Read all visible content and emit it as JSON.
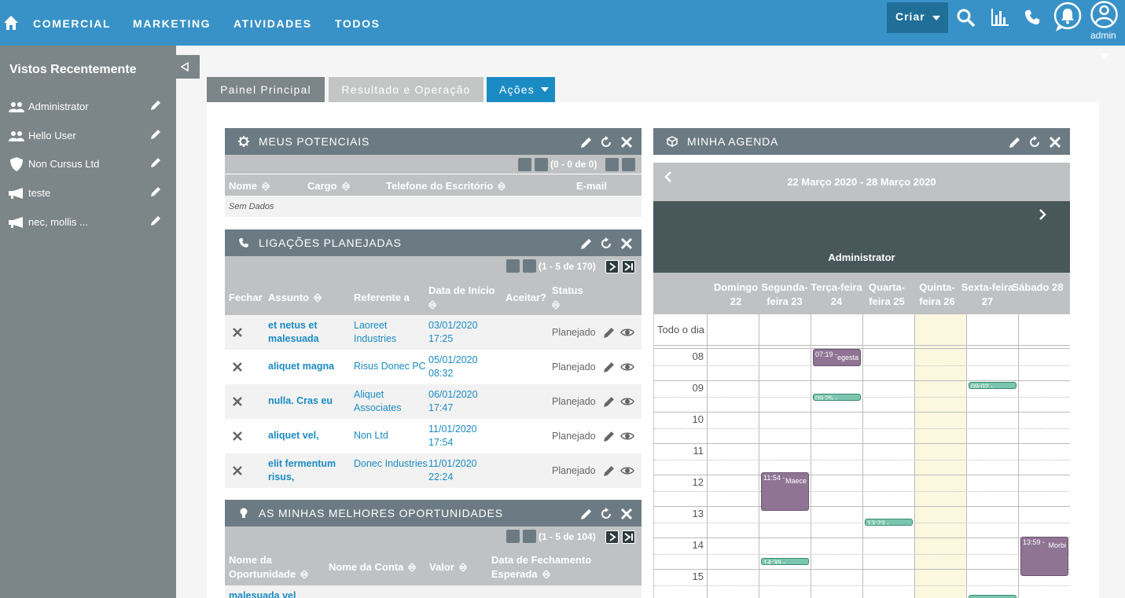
{
  "nav": {
    "items": [
      "COMERCIAL",
      "MARKETING",
      "ATIVIDADES",
      "TODOS"
    ],
    "create_label": "Criar",
    "user_label": "admin",
    "icons": [
      "home-icon",
      "search-icon",
      "reports-icon",
      "phone-icon",
      "notifications-icon",
      "user-avatar-icon"
    ]
  },
  "sidebar": {
    "title": "Vistos Recentemente",
    "items": [
      {
        "label": "Administrator",
        "icon": "users-icon"
      },
      {
        "label": "Hello User",
        "icon": "users-icon"
      },
      {
        "label": "Non Cursus Ltd",
        "icon": "shield-icon"
      },
      {
        "label": "teste",
        "icon": "megaphone-icon"
      },
      {
        "label": "nec, mollis ...",
        "icon": "megaphone-icon"
      }
    ]
  },
  "tabs": {
    "main": "Painel Principal",
    "results": "Resultado e Operação",
    "actions": "Ações"
  },
  "leads": {
    "title": "MEUS POTENCIAIS",
    "pager": "(0 - 0 de 0)",
    "columns": [
      "Nome",
      "Cargo",
      "Telefone do Escritório",
      "E-mail"
    ],
    "empty": "Sem Dados"
  },
  "calls": {
    "title": "LIGAÇÕES PLANEJADAS",
    "pager": "(1 - 5 de 170)",
    "columns": {
      "close": "Fechar",
      "subject": "Assunto",
      "related": "Referente a",
      "start": "Data de Início",
      "accept": "Aceitar?",
      "status": "Status"
    },
    "rows": [
      {
        "subject": "et netus et malesuada",
        "related": "Laoreet Industries",
        "date": "03/01/2020",
        "time": "17:25",
        "status": "Planejado"
      },
      {
        "subject": "aliquet magna",
        "related": "Risus Donec PC",
        "date": "05/01/2020",
        "time": "08:32",
        "status": "Planejado"
      },
      {
        "subject": "nulla. Cras eu",
        "related": "Aliquet Associates",
        "date": "06/01/2020",
        "time": "17:47",
        "status": "Planejado"
      },
      {
        "subject": "aliquet vel,",
        "related": "Non Ltd",
        "date": "11/01/2020",
        "time": "17:54",
        "status": "Planejado"
      },
      {
        "subject": "elit fermentum risus,",
        "related": "Donec Industries",
        "date": "11/01/2020",
        "time": "22:24",
        "status": "Planejado"
      }
    ]
  },
  "opps": {
    "title": "AS MINHAS MELHORES OPORTUNIDADES",
    "pager": "(1 - 5 de 104)",
    "columns": {
      "name": "Nome da Oportunidade",
      "account": "Nome da Conta",
      "value": "Valor",
      "close_date": "Data de Fechamento Esperada"
    },
    "first_row": "malesuada vel"
  },
  "agenda": {
    "title": "MINHA AGENDA",
    "range": "22 Março 2020 - 28 Março 2020",
    "user": "Administrator",
    "all_day": "Todo o dia",
    "days": [
      [
        "Domingo",
        "22"
      ],
      [
        "Segunda-",
        "feira 23"
      ],
      [
        "Terça-feira",
        "24"
      ],
      [
        "Quarta-",
        "feira 25"
      ],
      [
        "Quinta-",
        "feira 26"
      ],
      [
        "Sexta-feira",
        "27"
      ],
      [
        "Sábado 28",
        ""
      ]
    ],
    "hours": [
      "08",
      "09",
      "10",
      "11",
      "12",
      "13",
      "14",
      "15"
    ],
    "events": [
      {
        "day": 2,
        "start": "07:19",
        "label": "07:19 -",
        "desc": "egesta",
        "color": "purple"
      },
      {
        "day": 2,
        "start": "09:25",
        "label": "09:25 -",
        "desc": "",
        "color": "green"
      },
      {
        "day": 5,
        "start": "09:02",
        "label": "09:02 -",
        "desc": "",
        "color": "green"
      },
      {
        "day": 1,
        "start": "11:54",
        "label": "11:54 -",
        "desc": "Maece",
        "color": "purple"
      },
      {
        "day": 3,
        "start": "13:23",
        "label": "13:23 -",
        "desc": "",
        "color": "green"
      },
      {
        "day": 6,
        "start": "13:59",
        "label": "13:59 -",
        "desc": "Morbi",
        "color": "purple"
      },
      {
        "day": 1,
        "start": "14:39",
        "label": "14:39 -",
        "desc": "",
        "color": "green"
      }
    ]
  }
}
